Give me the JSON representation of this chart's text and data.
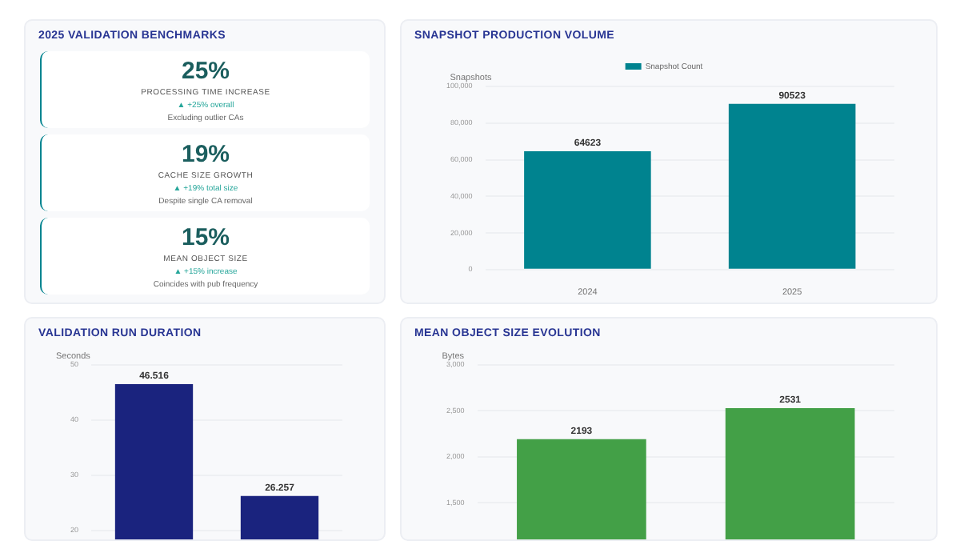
{
  "chart_data": [
    {
      "type": "other",
      "title": "2025 VALIDATION BENCHMARKS",
      "annotations": [
        "25%",
        "PROCESSING TIME INCREASE",
        "▲ +25% overall",
        "Excluding outlier CAs",
        "19%",
        "CACHE SIZE GROWTH",
        "▲ +19% total size",
        "Despite single CA removal",
        "15%",
        "MEAN OBJECT SIZE",
        "▲ +15% increase",
        "Coincides with pub frequency"
      ]
    },
    {
      "type": "bar",
      "title": "SNAPSHOT PRODUCTION VOLUME",
      "ylabel": "Snapshots",
      "categories": [
        "2024",
        "2025"
      ],
      "series": [
        {
          "name": "Snapshot Count",
          "color": "#00838f",
          "values": [
            64623,
            90523
          ]
        }
      ],
      "ylim": [
        0,
        100000
      ],
      "yticks": [
        0,
        {
          "value": 20000,
          "label": "20,000"
        },
        {
          "value": 40000,
          "label": "40,000"
        },
        {
          "value": 60000,
          "label": "60,000"
        },
        {
          "value": 80000,
          "label": "80,000"
        },
        {
          "value": 100000,
          "label": "100,000"
        }
      ],
      "grid": "y",
      "legend": "top",
      "data_labels": true
    },
    {
      "type": "bar",
      "title": "VALIDATION RUN DURATION",
      "ylabel": "Seconds",
      "categories": [
        null,
        null
      ],
      "values": [
        46.516,
        26.257
      ],
      "color": "#1a237e",
      "ylim": [
        0,
        50
      ],
      "yticks": [
        20,
        30,
        40,
        50
      ],
      "grid": "y",
      "data_labels": true
    },
    {
      "type": "bar",
      "title": "MEAN OBJECT SIZE EVOLUTION",
      "ylabel": "Bytes",
      "categories": [
        null,
        null
      ],
      "values": [
        2193,
        2531
      ],
      "color": "#43a047",
      "ylim": [
        0,
        3000
      ],
      "yticks": [
        {
          "value": 1500,
          "label": "1,500"
        },
        {
          "value": 2000,
          "label": "2,000"
        },
        {
          "value": 2500,
          "label": "2,500"
        },
        {
          "value": 3000,
          "label": "3,000"
        }
      ],
      "grid": "y",
      "data_labels": true
    }
  ]
}
